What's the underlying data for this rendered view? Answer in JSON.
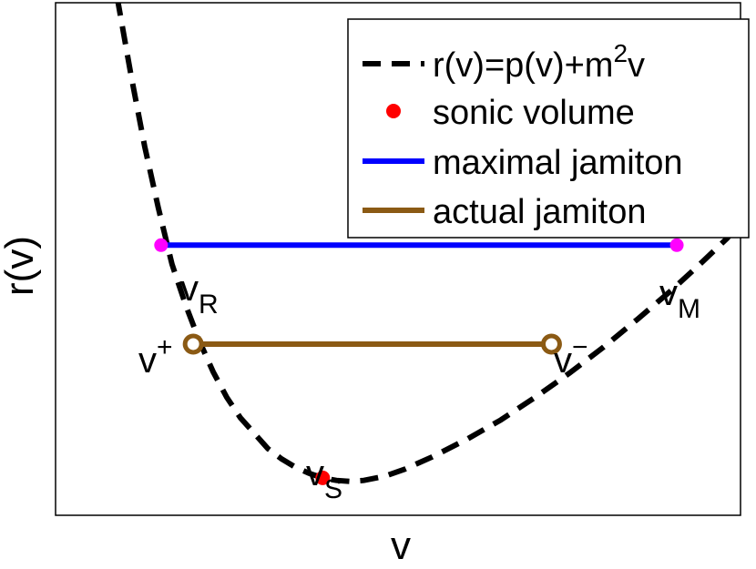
{
  "chart_data": {
    "type": "line",
    "xlabel": "v",
    "ylabel": "r(v)",
    "title": "",
    "x_ticks": [],
    "y_ticks": [],
    "grid": false,
    "legend_position": "top-right",
    "colors": {
      "curve": "#000000",
      "sonic": "#ff0000",
      "maximal": "#0000ff",
      "actual": "#8b5a14",
      "endpoint": "#ff00ff"
    },
    "xlim": [
      0,
      100
    ],
    "ylim": [
      0,
      100
    ],
    "series": [
      {
        "name": "r(v)=p(v)+m²v",
        "legend_label": {
          "base": "r(v)=p(v)+m",
          "sup": "2",
          "tail": "v"
        },
        "style": "dashed",
        "color": "#000000",
        "x": [
          9.0,
          11.0,
          13.0,
          15.0,
          17.0,
          19.0,
          21.0,
          23.0,
          25.0,
          27.0,
          29.0,
          31.0,
          33.0,
          35.0,
          37.0,
          39.0,
          41.0,
          43.0,
          45.0,
          48.0,
          51.0,
          55.0,
          60.0,
          65.0,
          70.0,
          75.0,
          80.0,
          85.0,
          90.0,
          94.0,
          98.0,
          101.0
        ],
        "y": [
          101.0,
          86.0,
          72.0,
          60.0,
          49.0,
          41.0,
          34.0,
          28.0,
          23.0,
          19.0,
          16.0,
          13.0,
          11.0,
          9.4,
          8.2,
          7.3,
          6.8,
          6.6,
          6.8,
          7.6,
          9.0,
          11.4,
          14.8,
          18.6,
          23.0,
          27.7,
          32.8,
          38.3,
          44.0,
          48.9,
          54.0,
          58.5
        ]
      },
      {
        "name": "sonic volume",
        "style": "marker",
        "color": "#ff0000",
        "points": [
          {
            "x": 39.0,
            "y": 7.3,
            "label": "v",
            "sub": "S"
          }
        ]
      },
      {
        "name": "maximal jamiton",
        "style": "solid",
        "color": "#0000ff",
        "x": [
          15.4,
          90.7
        ],
        "y": [
          52.7,
          52.7
        ],
        "endpoints": [
          {
            "label": "v",
            "sub": "R"
          },
          {
            "label": "v",
            "sub": "M"
          }
        ]
      },
      {
        "name": "actual jamiton",
        "style": "solid",
        "color": "#8b5a14",
        "x": [
          20.1,
          72.4
        ],
        "y": [
          33.4,
          33.4
        ],
        "endpoints": [
          {
            "label": "v",
            "sup": "+"
          },
          {
            "label": "v",
            "sup": "−"
          }
        ]
      }
    ]
  }
}
